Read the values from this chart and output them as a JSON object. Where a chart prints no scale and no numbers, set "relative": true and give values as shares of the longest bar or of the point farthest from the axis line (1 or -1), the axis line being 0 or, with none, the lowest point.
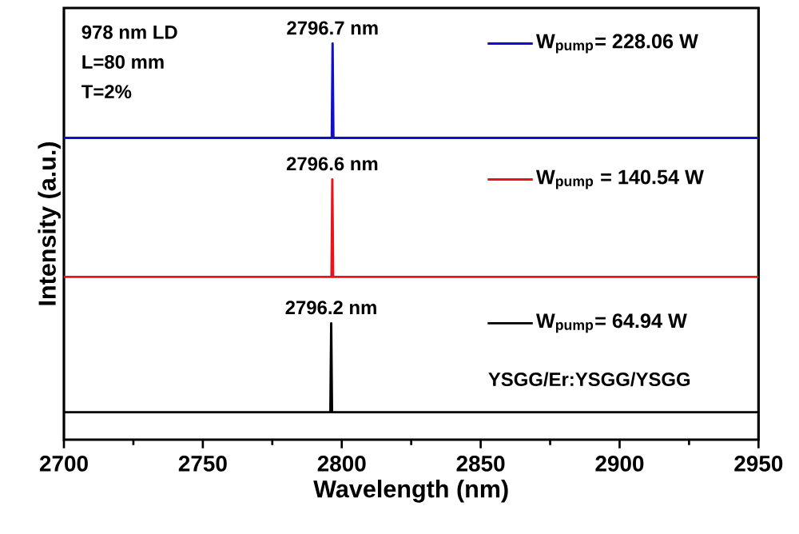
{
  "chart_data": {
    "type": "line",
    "xlabel": "Wavelength (nm)",
    "ylabel": "Intensity (a.u.)",
    "relative": true,
    "legend": "right",
    "xlim": [
      2700,
      2950
    ],
    "xticks": [
      2700,
      2750,
      2800,
      2850,
      2900,
      2950
    ],
    "series": [
      {
        "name": "W$_{pump}$= 64.94 W",
        "color": "#000000",
        "x": [
          2700,
          2795.9,
          2796.2,
          2796.5,
          2950
        ],
        "values": [
          0.069,
          0.069,
          0.294,
          0.069,
          0.069
        ]
      },
      {
        "name": "W$_{pump}$ = 140.54 W",
        "color": "#e8141c",
        "x": [
          2700,
          2796.3,
          2796.6,
          2796.9,
          2950
        ],
        "values": [
          0.411,
          0.411,
          0.657,
          0.411,
          0.411
        ]
      },
      {
        "name": "W$_{pump}$= 228.06 W",
        "color": "#1010c8",
        "x": [
          2700,
          2796.4,
          2796.7,
          2797.0,
          2950
        ],
        "values": [
          0.762,
          0.762,
          1.0,
          0.762,
          0.762
        ]
      }
    ],
    "annotations": [
      {
        "text": "2796.2 nm",
        "x": 2796.2,
        "y": 0.294
      },
      {
        "text": "2796.6 nm",
        "x": 2796.6,
        "y": 0.657
      },
      {
        "text": "2796.7 nm",
        "x": 2796.7,
        "y": 1.0
      },
      "978 nm LD",
      "L=80 mm",
      "T=2%",
      "YSGG/Er:YSGG/YSGG"
    ]
  }
}
